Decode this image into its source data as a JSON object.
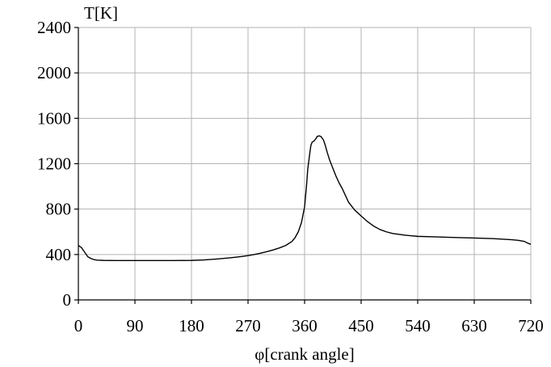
{
  "chart_data": {
    "type": "line",
    "title": "",
    "xlabel": "φ[crank angle]",
    "ylabel": "T[K]",
    "xlim": [
      0,
      720
    ],
    "ylim": [
      0,
      2400
    ],
    "xticks": [
      0,
      90,
      180,
      270,
      360,
      450,
      540,
      630,
      720
    ],
    "yticks": [
      0,
      400,
      800,
      1200,
      1600,
      2000,
      2400
    ],
    "grid": true,
    "series": [
      {
        "color": "#000000",
        "x": [
          0,
          5,
          10,
          15,
          20,
          25,
          30,
          40,
          60,
          90,
          120,
          150,
          180,
          200,
          220,
          240,
          260,
          270,
          280,
          290,
          300,
          310,
          320,
          330,
          340,
          345,
          350,
          355,
          360,
          363,
          365,
          368,
          370,
          372,
          375,
          378,
          380,
          383,
          386,
          390,
          393,
          396,
          400,
          405,
          410,
          415,
          420,
          425,
          430,
          440,
          450,
          460,
          470,
          480,
          490,
          500,
          520,
          540,
          570,
          600,
          630,
          660,
          690,
          700,
          710,
          715,
          720
        ],
        "y": [
          480,
          460,
          420,
          380,
          365,
          355,
          350,
          348,
          347,
          347,
          347,
          347,
          348,
          352,
          360,
          370,
          382,
          390,
          400,
          412,
          425,
          440,
          458,
          480,
          515,
          550,
          600,
          680,
          820,
          1000,
          1150,
          1280,
          1360,
          1390,
          1400,
          1420,
          1440,
          1445,
          1440,
          1410,
          1360,
          1300,
          1230,
          1160,
          1090,
          1030,
          980,
          920,
          860,
          790,
          740,
          690,
          650,
          620,
          600,
          585,
          570,
          560,
          555,
          550,
          545,
          540,
          530,
          525,
          515,
          500,
          490
        ]
      }
    ]
  }
}
